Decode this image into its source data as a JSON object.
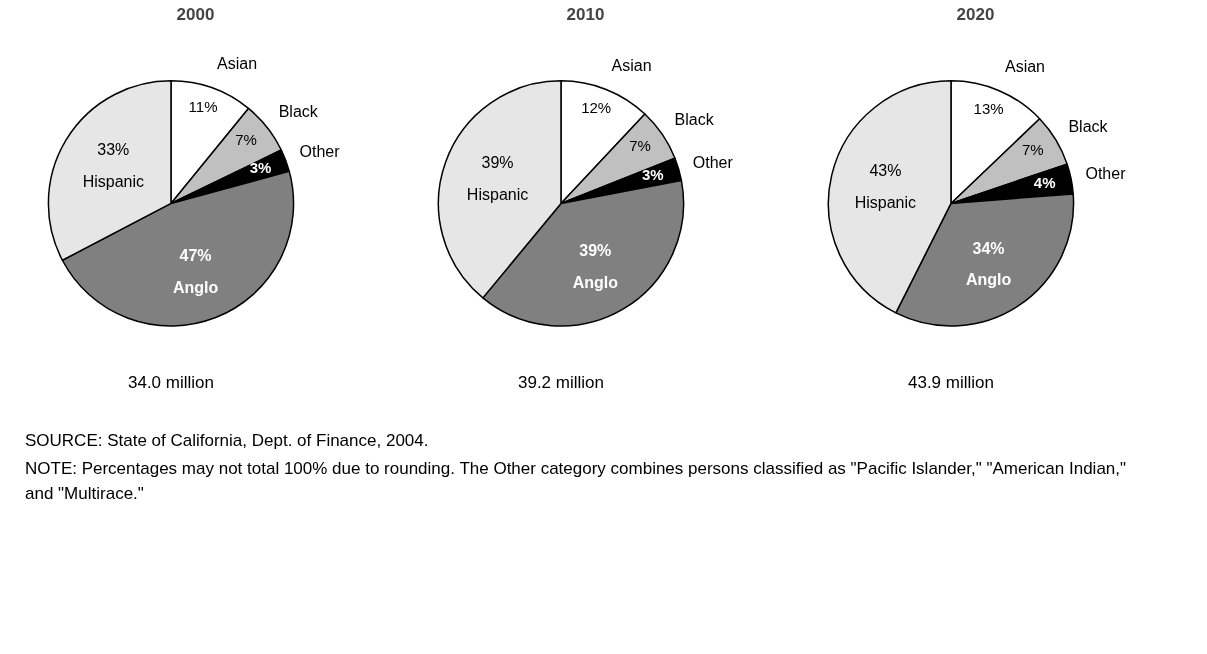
{
  "chart_data": [
    {
      "type": "pie",
      "title": "2000",
      "categories": [
        "Asian",
        "Black",
        "Other",
        "Anglo",
        "Hispanic"
      ],
      "values": [
        11,
        7,
        3,
        47,
        33
      ],
      "colors": [
        "#ffffff",
        "#c0c0c0",
        "#000000",
        "#808080",
        "#e6e6e6"
      ],
      "value_labels": [
        "11%",
        "7%",
        "3%",
        "47%",
        "33%"
      ],
      "annotations": [
        "34.0 million"
      ]
    },
    {
      "type": "pie",
      "title": "2010",
      "categories": [
        "Asian",
        "Black",
        "Other",
        "Anglo",
        "Hispanic"
      ],
      "values": [
        12,
        7,
        3,
        39,
        39
      ],
      "colors": [
        "#ffffff",
        "#c0c0c0",
        "#000000",
        "#808080",
        "#e6e6e6"
      ],
      "value_labels": [
        "12%",
        "7%",
        "3%",
        "39%",
        "39%"
      ],
      "annotations": [
        "39.2 million"
      ]
    },
    {
      "type": "pie",
      "title": "2020",
      "categories": [
        "Asian",
        "Black",
        "Other",
        "Anglo",
        "Hispanic"
      ],
      "values": [
        13,
        7,
        4,
        34,
        43
      ],
      "colors": [
        "#ffffff",
        "#c0c0c0",
        "#000000",
        "#808080",
        "#e6e6e6"
      ],
      "value_labels": [
        "13%",
        "7%",
        "4%",
        "34%",
        "43%"
      ],
      "annotations": [
        "43.9 million",
        "SOURCE: State of California, Dept. of Finance, 2004.",
        "NOTE: Percentages may not total 100% due to rounding. The Other category combines persons classified as \"Pacific Islander,\" \"American Indian,\" and \"Multirace.\""
      ]
    }
  ]
}
